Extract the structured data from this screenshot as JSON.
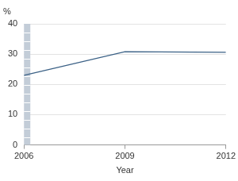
{
  "chart_data": {
    "type": "line",
    "ylabel": "%",
    "xlabel": "Year",
    "x": [
      2006,
      2009,
      2012
    ],
    "values": [
      23,
      30.8,
      30.6
    ],
    "color": "#3b6186",
    "xlim": [
      2006,
      2012
    ],
    "xticks": [
      2006,
      2009,
      2012
    ],
    "ylim": [
      0,
      40
    ],
    "yticks": [
      0,
      10,
      20,
      30,
      40
    ],
    "grid": true
  }
}
